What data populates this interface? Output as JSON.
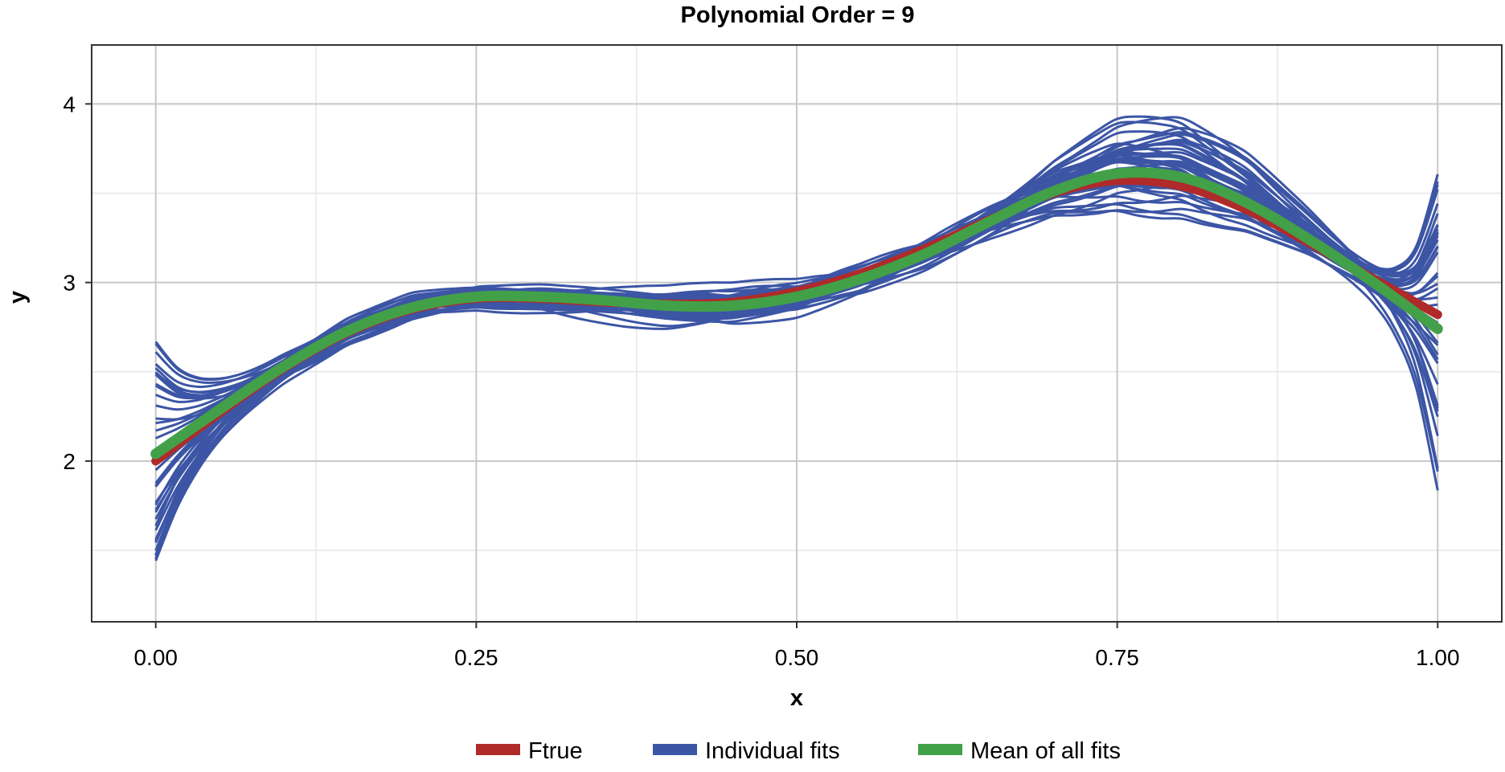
{
  "chart_data": {
    "type": "line",
    "title": "Polynomial Order = 9",
    "xlabel": "x",
    "ylabel": "y",
    "xlim": [
      -0.05,
      1.05
    ],
    "ylim": [
      1.1,
      4.33
    ],
    "xticks": [
      0.0,
      0.25,
      0.5,
      0.75,
      1.0
    ],
    "xtick_labels": [
      "0.00",
      "0.25",
      "0.50",
      "0.75",
      "1.00"
    ],
    "yticks": [
      2,
      3,
      4
    ],
    "ytick_labels": [
      "2",
      "3",
      "4"
    ],
    "minor_grid_x": [
      0.125,
      0.375,
      0.625,
      0.875
    ],
    "minor_grid_y": [
      1.5,
      2.5,
      3.5
    ],
    "grid": true,
    "legend_position": "bottom",
    "legend": [
      "Ftrue",
      "Individual fits",
      "Mean of all fits"
    ],
    "colors": {
      "ftrue": "#b02a2a",
      "fits": "#3c55a5",
      "mean": "#42a049"
    },
    "n_individual_fits": 40,
    "series": [
      {
        "name": "Ftrue",
        "x": [
          0.0,
          0.05,
          0.1,
          0.15,
          0.2,
          0.25,
          0.3,
          0.35,
          0.4,
          0.45,
          0.5,
          0.55,
          0.6,
          0.65,
          0.7,
          0.75,
          0.8,
          0.85,
          0.9,
          0.95,
          1.0
        ],
        "y": [
          2.0,
          2.27,
          2.52,
          2.72,
          2.85,
          2.91,
          2.91,
          2.89,
          2.88,
          2.89,
          2.95,
          3.05,
          3.19,
          3.35,
          3.5,
          3.57,
          3.54,
          3.41,
          3.22,
          3.02,
          2.82
        ]
      },
      {
        "name": "Mean of all fits",
        "x": [
          0.0,
          0.05,
          0.1,
          0.15,
          0.2,
          0.25,
          0.3,
          0.35,
          0.4,
          0.45,
          0.5,
          0.55,
          0.6,
          0.65,
          0.7,
          0.75,
          0.8,
          0.85,
          0.9,
          0.95,
          1.0
        ],
        "y": [
          2.04,
          2.29,
          2.53,
          2.73,
          2.86,
          2.92,
          2.92,
          2.9,
          2.87,
          2.87,
          2.92,
          3.02,
          3.16,
          3.34,
          3.51,
          3.61,
          3.59,
          3.45,
          3.24,
          3.0,
          2.74
        ]
      }
    ]
  }
}
